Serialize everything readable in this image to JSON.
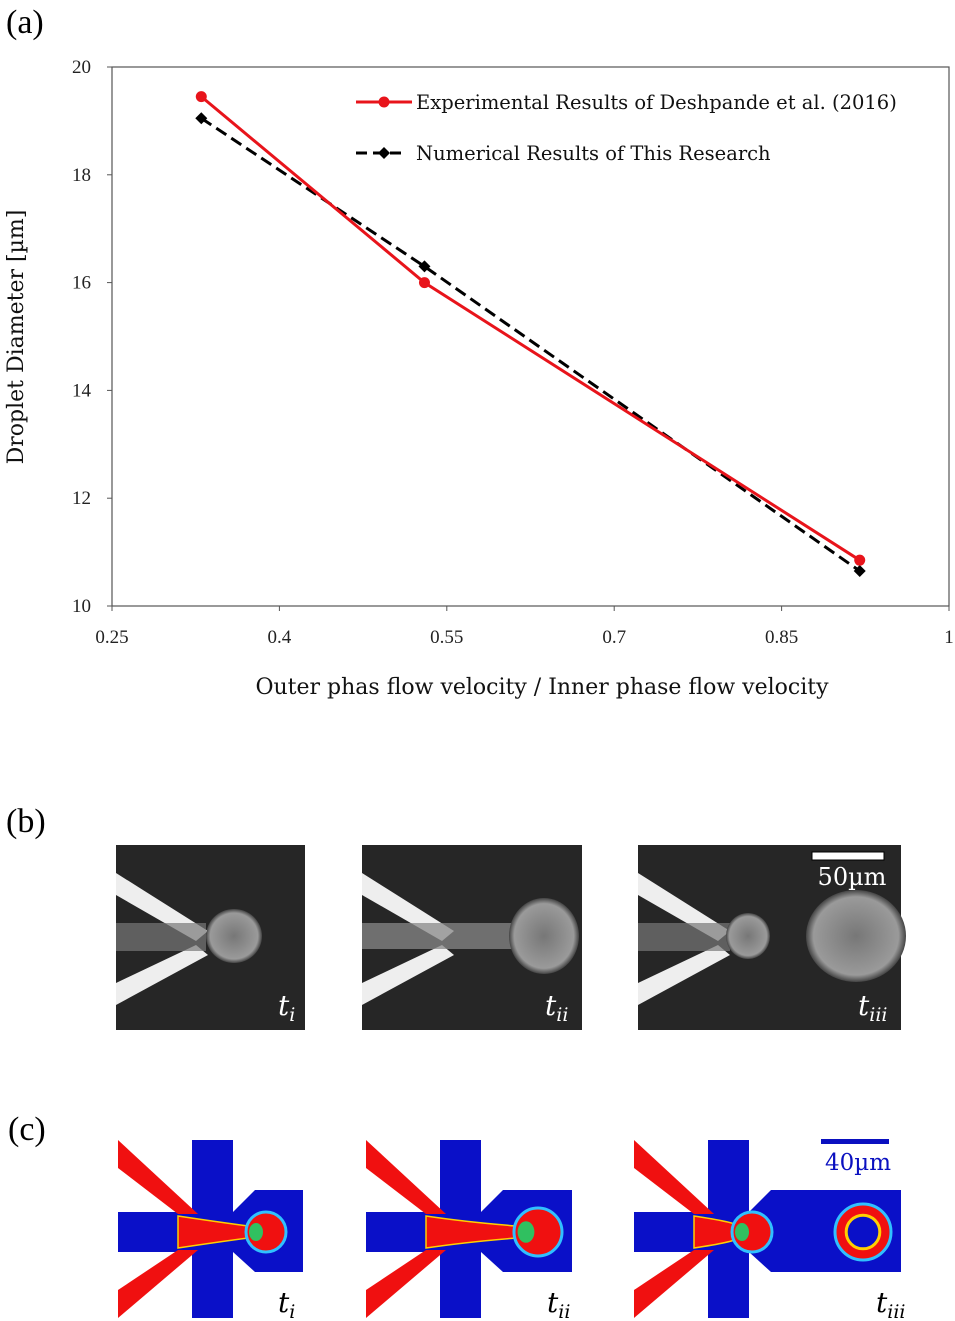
{
  "panel_labels": {
    "a": "(a)",
    "b": "(b)",
    "c": "(c)"
  },
  "chart_data": {
    "type": "line",
    "title": "",
    "xlabel": "Outer  phas flow velocity / Inner phase flow velocity",
    "ylabel": "Droplet Diameter [µm]",
    "xlim": [
      0.25,
      1
    ],
    "ylim": [
      10,
      20
    ],
    "xticks": [
      "0.25",
      "0.4",
      "0.55",
      "0.7",
      "0.85",
      "1"
    ],
    "yticks": [
      "10",
      "12",
      "14",
      "16",
      "18",
      "20"
    ],
    "grid": false,
    "legend_position": "top-right",
    "series": [
      {
        "name": "Experimental Results of Deshpande et al. (2016)",
        "color": "#e8141b",
        "style": "solid",
        "marker": "circle",
        "x": [
          0.33,
          0.53,
          0.92
        ],
        "y": [
          19.45,
          16.0,
          10.85
        ]
      },
      {
        "name": "Numerical Results of This Research",
        "color": "#000000",
        "style": "dashed",
        "marker": "diamond",
        "x": [
          0.33,
          0.53,
          0.92
        ],
        "y": [
          19.05,
          16.3,
          10.65
        ]
      }
    ]
  },
  "panel_b": {
    "scale_bar": "50µm",
    "times": [
      {
        "t": "t",
        "sub": "i"
      },
      {
        "t": "t",
        "sub": "ii"
      },
      {
        "t": "t",
        "sub": "iii"
      }
    ]
  },
  "panel_c": {
    "scale_bar": "40µm",
    "scale_color": "#0a10c0",
    "times": [
      {
        "t": "t",
        "sub": "i"
      },
      {
        "t": "t",
        "sub": "ii"
      },
      {
        "t": "t",
        "sub": "iii"
      }
    ]
  }
}
